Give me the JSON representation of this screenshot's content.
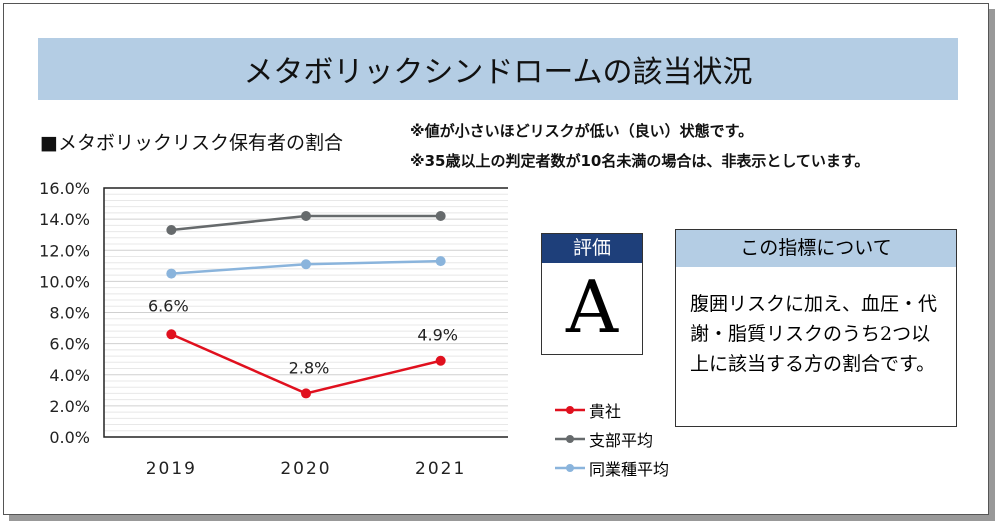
{
  "title": "メタボリックシンドロームの該当状況",
  "subtitle": "■メタボリックリスク保有者の割合",
  "notes": [
    "※値が小さいほどリスクが低い（良い）状態です。",
    "※35歳以上の判定者数が10名未満の場合は、非表示としています。"
  ],
  "evaluation": {
    "label": "評価",
    "grade": "A"
  },
  "about": {
    "title": "この指標について",
    "body": "腹囲リスクに加え、血圧・代謝・脂質リスクのうち2つ以上に該当する方の割合です。"
  },
  "chart_data": {
    "type": "line",
    "categories": [
      "2019",
      "2020",
      "2021"
    ],
    "ylim": [
      0,
      16
    ],
    "yticks": [
      "0.0%",
      "2.0%",
      "4.0%",
      "6.0%",
      "8.0%",
      "10.0%",
      "12.0%",
      "14.0%",
      "16.0%"
    ],
    "series": [
      {
        "name": "貴社",
        "values": [
          6.6,
          2.8,
          4.9
        ],
        "labels": [
          "6.6%",
          "2.8%",
          "4.9%"
        ],
        "color": "#e0101e"
      },
      {
        "name": "支部平均",
        "values": [
          13.3,
          14.2,
          14.2
        ],
        "color": "#666a6c"
      },
      {
        "name": "同業種平均",
        "values": [
          10.5,
          11.1,
          11.3
        ],
        "color": "#8ab4dc"
      }
    ],
    "legend": "bottom-right"
  }
}
